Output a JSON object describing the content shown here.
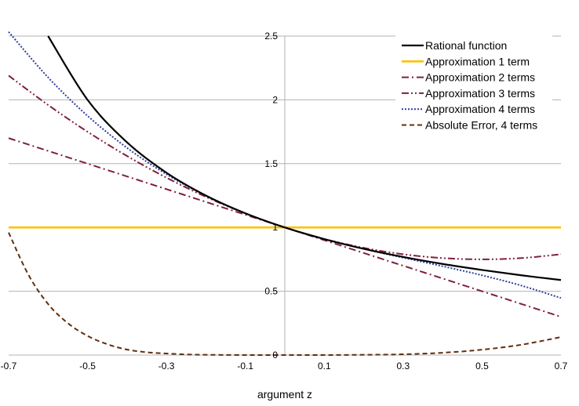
{
  "chart_data": {
    "type": "line",
    "title": "",
    "xlabel": "argument z",
    "ylabel": "",
    "xlim": [
      -0.7,
      0.7
    ],
    "ylim": [
      0,
      2.5
    ],
    "grid": true,
    "legend_position": "top-right",
    "x_ticks": [
      "-0.7",
      "-0.5",
      "-0.3",
      "-0.1",
      "0.1",
      "0.3",
      "0.5",
      "0.7"
    ],
    "y_ticks": [
      "0",
      "0.5",
      "1",
      "1.5",
      "2",
      "2.5"
    ],
    "series": [
      {
        "name": "Rational function",
        "color": "#000000",
        "dash": "solid",
        "x": [
          -0.6,
          -0.5,
          -0.4,
          -0.3,
          -0.2,
          -0.1,
          0,
          0.1,
          0.2,
          0.3,
          0.4,
          0.5,
          0.6,
          0.7
        ],
        "y": [
          2.5,
          2.0,
          1.667,
          1.429,
          1.25,
          1.111,
          1.0,
          0.909,
          0.833,
          0.769,
          0.714,
          0.667,
          0.625,
          0.588
        ]
      },
      {
        "name": "Approximation 1 term",
        "color": "#ffc000",
        "dash": "solid",
        "x": [
          -0.7,
          0.7
        ],
        "y": [
          1.0,
          1.0
        ]
      },
      {
        "name": "Approximation 2 terms",
        "color": "#7f1f3f",
        "dash": "dashdot",
        "x": [
          -0.7,
          0,
          0.7
        ],
        "y": [
          1.7,
          1.0,
          0.3
        ]
      },
      {
        "name": "Approximation 3 terms",
        "color": "#7f1f3f",
        "dash": "dashdotdot",
        "x": [
          -0.7,
          -0.6,
          -0.5,
          -0.4,
          -0.3,
          -0.2,
          -0.1,
          0,
          0.1,
          0.2,
          0.3,
          0.4,
          0.5,
          0.6,
          0.7
        ],
        "y": [
          2.19,
          1.96,
          1.75,
          1.56,
          1.39,
          1.24,
          1.11,
          1.0,
          0.91,
          0.84,
          0.79,
          0.76,
          0.75,
          0.76,
          0.79
        ]
      },
      {
        "name": "Approximation 4 terms",
        "color": "#2f3f9f",
        "dash": "dotted",
        "x": [
          -0.7,
          -0.6,
          -0.5,
          -0.4,
          -0.3,
          -0.2,
          -0.1,
          0,
          0.1,
          0.2,
          0.3,
          0.4,
          0.5,
          0.6,
          0.7
        ],
        "y": [
          2.533,
          2.176,
          1.875,
          1.624,
          1.417,
          1.248,
          1.111,
          1.0,
          0.909,
          0.832,
          0.763,
          0.696,
          0.625,
          0.544,
          0.447
        ]
      },
      {
        "name": "Absolute Error, 4 terms",
        "color": "#5f2f0f",
        "dash": "dashed",
        "x": [
          -0.7,
          -0.65,
          -0.6,
          -0.55,
          -0.5,
          -0.45,
          -0.4,
          -0.35,
          -0.3,
          -0.25,
          -0.2,
          -0.1,
          0,
          0.1,
          0.2,
          0.3,
          0.4,
          0.5,
          0.6,
          0.7
        ],
        "y": [
          0.96,
          0.63,
          0.4,
          0.25,
          0.15,
          0.085,
          0.043,
          0.022,
          0.012,
          0.005,
          0.002,
          0.0001,
          0.0,
          0.0001,
          0.002,
          0.006,
          0.018,
          0.042,
          0.081,
          0.141
        ]
      }
    ]
  }
}
